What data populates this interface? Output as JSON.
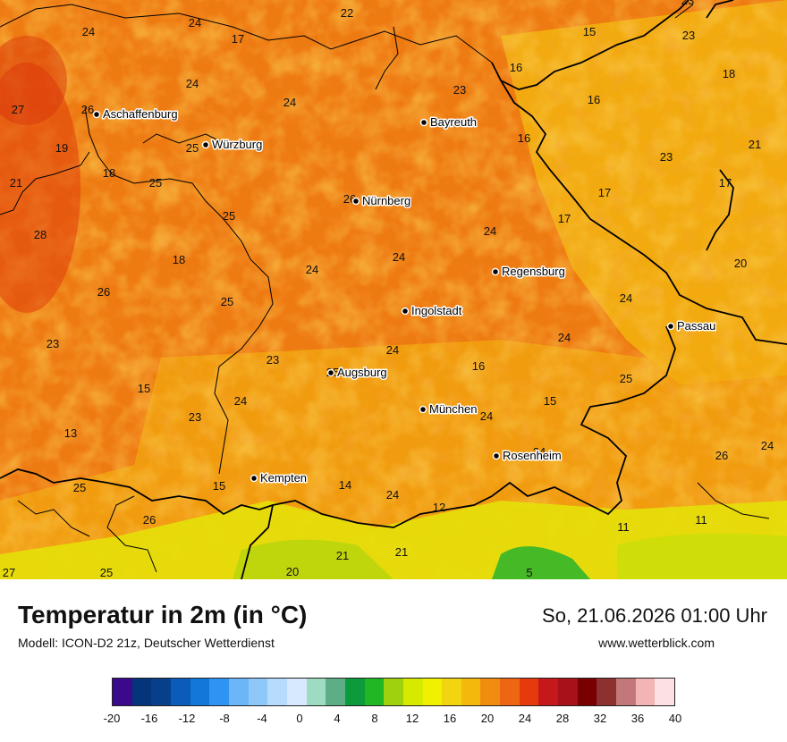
{
  "title": "Temperatur in 2m (in °C)",
  "subtitle": "Modell: ICON-D2 21z, Deutscher Wetterdienst",
  "datetime": "So, 21.06.2026 01:00 Uhr",
  "website": "www.wetterblick.com",
  "cities": [
    {
      "name": "Aschaffenburg"
    },
    {
      "name": "Würzburg"
    },
    {
      "name": "Bayreuth"
    },
    {
      "name": "Nürnberg"
    },
    {
      "name": "Regensburg"
    },
    {
      "name": "Ingolstadt"
    },
    {
      "name": "Passau"
    },
    {
      "name": "Augsburg"
    },
    {
      "name": "München"
    },
    {
      "name": "Rosenheim"
    },
    {
      "name": "Kempten"
    }
  ],
  "values": [
    "22",
    "24",
    "24",
    "17",
    "15",
    "23",
    "16",
    "18",
    "16",
    "23",
    "24",
    "27",
    "26",
    "24",
    "23",
    "19",
    "25",
    "16",
    "21",
    "23",
    "18",
    "17",
    "25",
    "21",
    "26",
    "25",
    "17",
    "17",
    "28",
    "24",
    "20",
    "18",
    "24",
    "26",
    "25",
    "24",
    "24",
    "24",
    "24",
    "23",
    "23",
    "16",
    "25",
    "15",
    "24",
    "15",
    "23",
    "25",
    "24",
    "24",
    "13",
    "24",
    "26",
    "24",
    "25",
    "15",
    "14",
    "24",
    "12",
    "11",
    "11",
    "26",
    "21",
    "21",
    "20",
    "27",
    "25",
    "5"
  ],
  "legend": {
    "colors": [
      "#3b0a8c",
      "#06347a",
      "#083f8a",
      "#0a5cb8",
      "#1177d8",
      "#2e93f2",
      "#6bb6f7",
      "#8ec8fa",
      "#b7dbfc",
      "#d6e9fd",
      "#9ddcc3",
      "#5dae86",
      "#0c9a3a",
      "#21b624",
      "#9fd10e",
      "#d6ea00",
      "#f0f000",
      "#f2d410",
      "#f4b80c",
      "#f08c10",
      "#ec6614",
      "#e63a0c",
      "#c4181a",
      "#a8101a",
      "#780000",
      "#8c3030",
      "#c27878",
      "#f3b4b4",
      "#fde0e4"
    ],
    "ticks": [
      "-20",
      "-16",
      "-12",
      "-8",
      "-4",
      "0",
      "4",
      "8",
      "12",
      "16",
      "20",
      "24",
      "28",
      "32",
      "36",
      "40"
    ]
  }
}
